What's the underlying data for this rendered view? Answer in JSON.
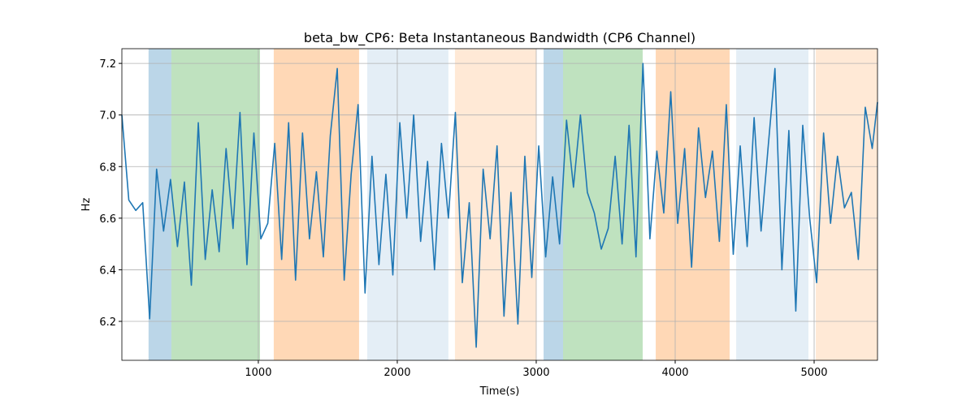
{
  "chart_data": {
    "type": "line",
    "title": "beta_bw_CP6: Beta Instantaneous Bandwidth (CP6 Channel)",
    "xlabel": "Time(s)",
    "ylabel": "Hz",
    "x": [
      18,
      68,
      118,
      168,
      218,
      268,
      318,
      368,
      418,
      468,
      518,
      568,
      618,
      668,
      718,
      768,
      818,
      868,
      918,
      968,
      1018,
      1068,
      1118,
      1168,
      1218,
      1268,
      1318,
      1368,
      1418,
      1468,
      1518,
      1568,
      1618,
      1668,
      1718,
      1768,
      1818,
      1868,
      1918,
      1968,
      2018,
      2068,
      2118,
      2168,
      2218,
      2268,
      2318,
      2368,
      2418,
      2468,
      2518,
      2568,
      2618,
      2668,
      2718,
      2768,
      2818,
      2868,
      2918,
      2968,
      3018,
      3068,
      3118,
      3168,
      3218,
      3268,
      3318,
      3368,
      3418,
      3468,
      3518,
      3568,
      3618,
      3668,
      3718,
      3768,
      3818,
      3868,
      3918,
      3968,
      4018,
      4068,
      4118,
      4168,
      4218,
      4268,
      4318,
      4368,
      4418,
      4468,
      4518,
      4568,
      4618,
      4668,
      4718,
      4768,
      4818,
      4868,
      4918,
      4968,
      5018,
      5068,
      5118,
      5168,
      5218,
      5268,
      5318,
      5368,
      5418,
      5456
    ],
    "values": [
      7.0,
      6.67,
      6.63,
      6.66,
      6.21,
      6.79,
      6.55,
      6.75,
      6.49,
      6.74,
      6.34,
      6.97,
      6.44,
      6.71,
      6.47,
      6.87,
      6.56,
      7.01,
      6.42,
      6.93,
      6.52,
      6.58,
      6.89,
      6.44,
      6.97,
      6.36,
      6.93,
      6.52,
      6.78,
      6.45,
      6.92,
      7.18,
      6.36,
      6.77,
      7.04,
      6.31,
      6.84,
      6.42,
      6.77,
      6.38,
      6.97,
      6.6,
      7.0,
      6.51,
      6.82,
      6.4,
      6.89,
      6.6,
      7.01,
      6.35,
      6.66,
      6.1,
      6.79,
      6.52,
      6.88,
      6.22,
      6.7,
      6.19,
      6.84,
      6.37,
      6.88,
      6.45,
      6.76,
      6.5,
      6.98,
      6.72,
      7.0,
      6.7,
      6.62,
      6.48,
      6.56,
      6.84,
      6.5,
      6.96,
      6.45,
      7.2,
      6.52,
      6.86,
      6.62,
      7.09,
      6.58,
      6.87,
      6.41,
      6.95,
      6.68,
      6.86,
      6.51,
      7.04,
      6.46,
      6.88,
      6.49,
      6.99,
      6.55,
      6.87,
      7.18,
      6.4,
      6.94,
      6.24,
      6.96,
      6.6,
      6.35,
      6.93,
      6.58,
      6.84,
      6.64,
      6.7,
      6.44,
      7.03,
      6.87,
      7.05
    ],
    "color": "#1f77b4",
    "spans": [
      {
        "start": 210,
        "end": 374,
        "color": "#1f77b4",
        "alpha": 0.3
      },
      {
        "start": 374,
        "end": 1012,
        "color": "#2ca02c",
        "alpha": 0.3
      },
      {
        "start": 1111,
        "end": 1725,
        "color": "#ff7f0e",
        "alpha": 0.3
      },
      {
        "start": 1784,
        "end": 2368,
        "color": "#1f77b4",
        "alpha": 0.12
      },
      {
        "start": 2415,
        "end": 3000,
        "color": "#ff7f0e",
        "alpha": 0.17
      },
      {
        "start": 3053,
        "end": 3193,
        "color": "#1f77b4",
        "alpha": 0.3
      },
      {
        "start": 3193,
        "end": 3766,
        "color": "#2ca02c",
        "alpha": 0.3
      },
      {
        "start": 3860,
        "end": 4392,
        "color": "#ff7f0e",
        "alpha": 0.3
      },
      {
        "start": 4439,
        "end": 4959,
        "color": "#1f77b4",
        "alpha": 0.12
      },
      {
        "start": 5012,
        "end": 5456,
        "color": "#ff7f0e",
        "alpha": 0.17
      }
    ],
    "xlim": [
      18,
      5456
    ],
    "ylim": [
      6.049,
      7.257
    ],
    "xticks": [
      1000,
      2000,
      3000,
      4000,
      5000
    ],
    "yticks": [
      6.2,
      6.4,
      6.6,
      6.8,
      {
        "value": 7,
        "label": "7.0"
      },
      7.2
    ],
    "grid": true
  }
}
